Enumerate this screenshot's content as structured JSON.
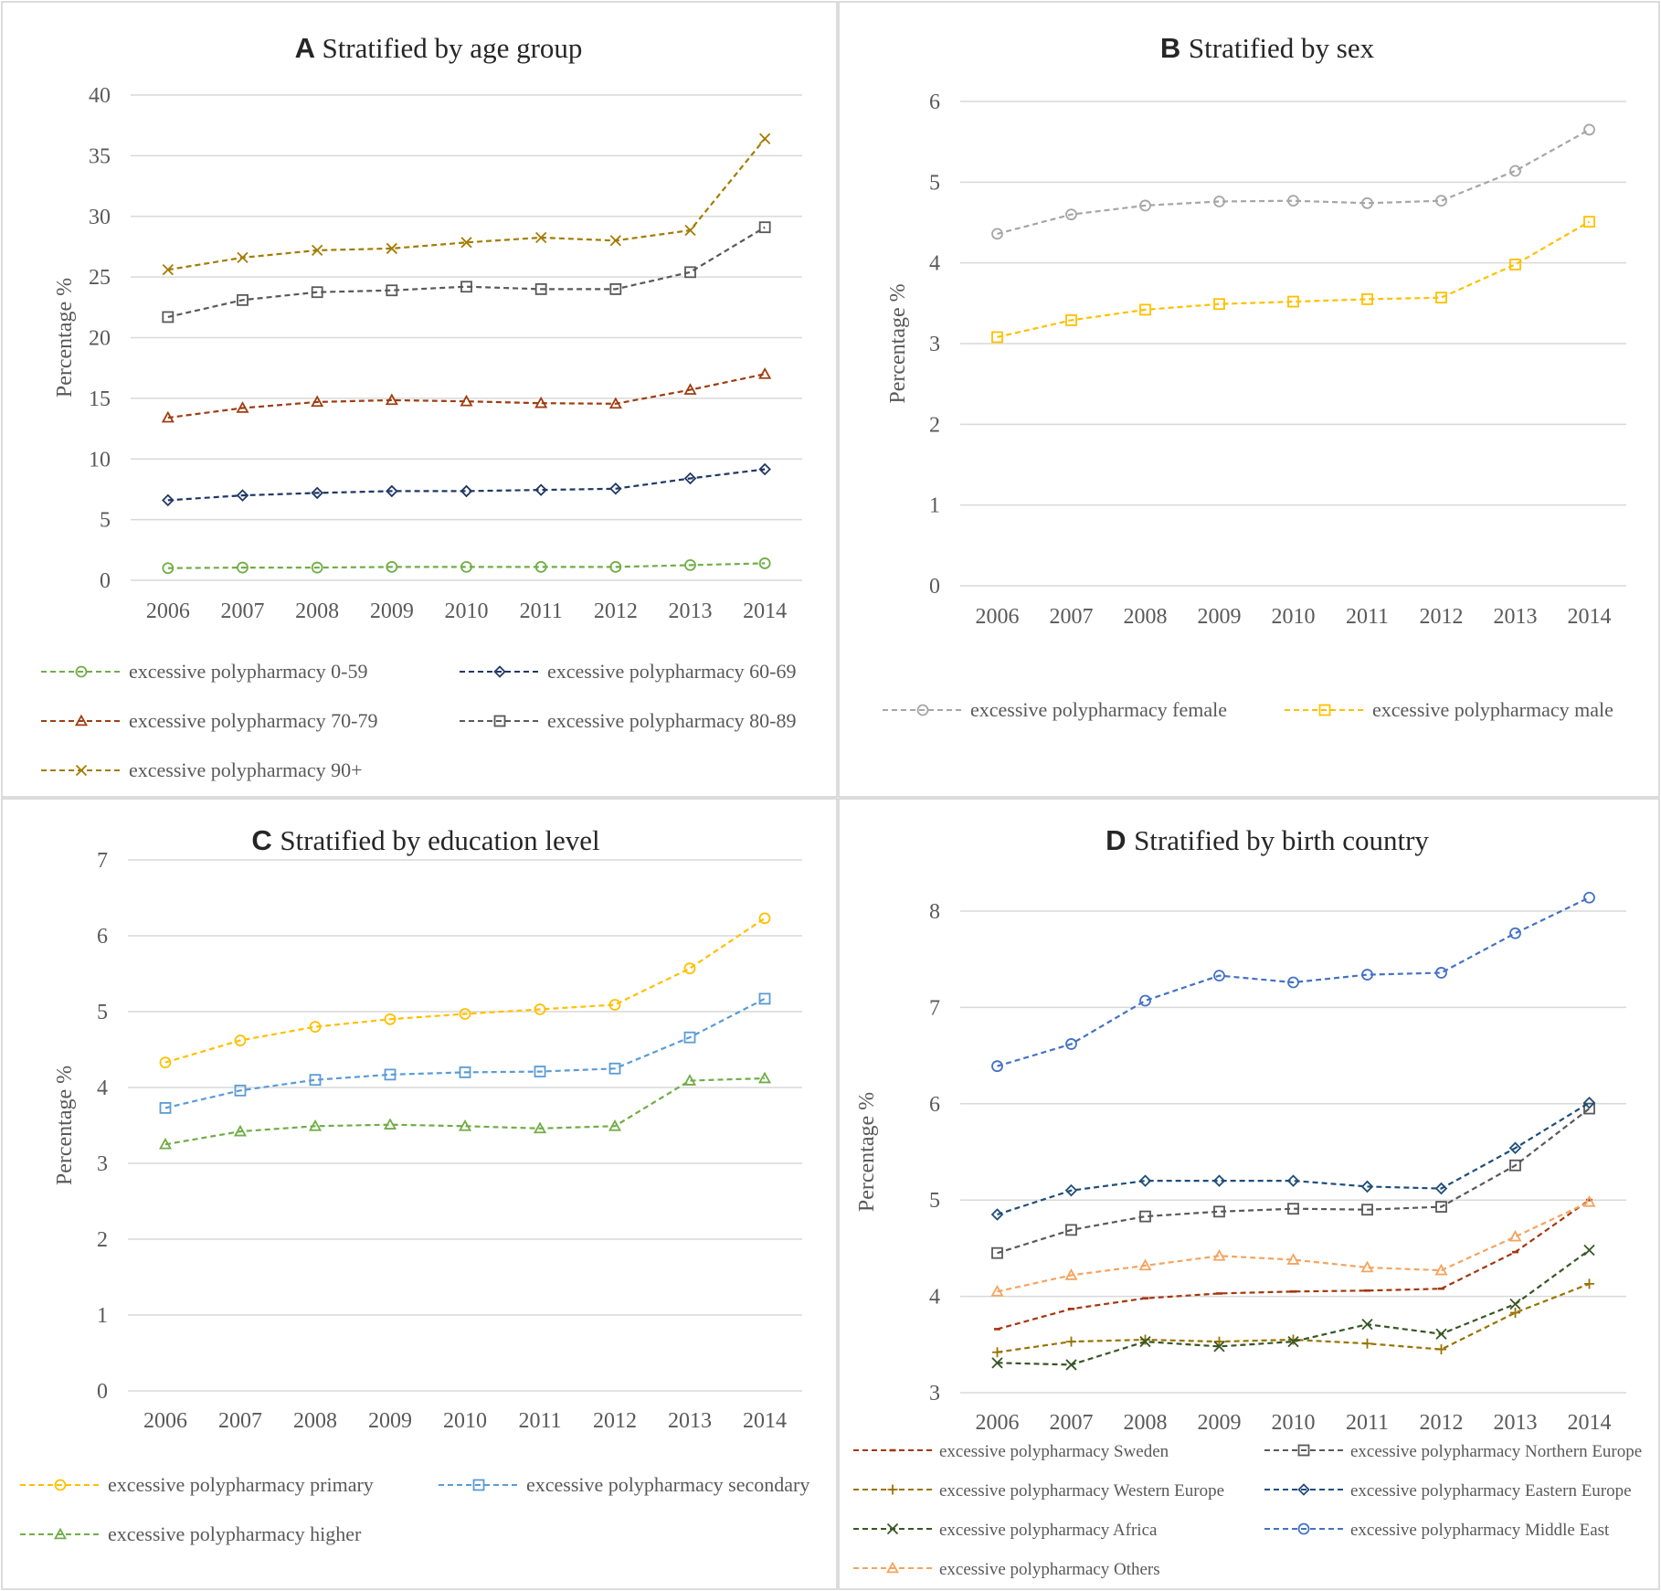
{
  "colors": {
    "grid": "#d9d9d9",
    "axis_text": "#595959",
    "border": "#d0d0d0",
    "green": "#70ad47",
    "navy": "#203864",
    "rust": "#9e3d11",
    "gray_dark": "#595959",
    "gold": "#a37c00",
    "gray_light": "#a6a6a6",
    "yellow": "#ffc000",
    "blue_light": "#5b9bd5",
    "red_brown": "#a5360f",
    "olive": "#997300",
    "navy2": "#1f4e79",
    "green_dark": "#375623",
    "blue_mid": "#4472c4",
    "salmon": "#f4a460"
  },
  "chart_data": [
    {
      "type": "line",
      "panel": "A",
      "title": "Stratified by age group",
      "ylabel": "Percentage %",
      "ylim": [
        0,
        40
      ],
      "yticks": [
        "0",
        "5",
        "10",
        "15",
        "20",
        "25",
        "30",
        "35",
        "40"
      ],
      "ytick_values": [
        0,
        5,
        10,
        15,
        20,
        25,
        30,
        35,
        40
      ],
      "categories": [
        "2006",
        "2007",
        "2008",
        "2009",
        "2010",
        "2011",
        "2012",
        "2013",
        "2014"
      ],
      "legend_columns": 2,
      "series": [
        {
          "name": "excessive polypharmacy 0-59",
          "color": "green",
          "marker": "circle",
          "values": [
            1.0,
            1.05,
            1.05,
            1.1,
            1.1,
            1.1,
            1.1,
            1.25,
            1.4
          ]
        },
        {
          "name": "excessive polypharmacy 60-69",
          "color": "navy",
          "marker": "diamond",
          "values": [
            6.6,
            7.0,
            7.2,
            7.35,
            7.35,
            7.45,
            7.55,
            8.4,
            9.15
          ]
        },
        {
          "name": "excessive polypharmacy 70-79",
          "color": "rust",
          "marker": "triangle",
          "values": [
            13.4,
            14.2,
            14.7,
            14.85,
            14.75,
            14.6,
            14.55,
            15.7,
            17.0
          ]
        },
        {
          "name": "excessive polypharmacy 80-89",
          "color": "gray_dark",
          "marker": "square",
          "values": [
            21.7,
            23.1,
            23.75,
            23.9,
            24.2,
            24.0,
            24.0,
            25.4,
            29.1
          ]
        },
        {
          "name": "excessive polypharmacy 90+",
          "color": "gold",
          "marker": "x",
          "values": [
            25.6,
            26.6,
            27.2,
            27.35,
            27.85,
            28.25,
            28.0,
            28.85,
            36.4
          ]
        }
      ]
    },
    {
      "type": "line",
      "panel": "B",
      "title": "Stratified by sex",
      "ylabel": "Percentage %",
      "ylim": [
        0,
        6
      ],
      "yticks": [
        "0",
        "1",
        "2",
        "3",
        "4",
        "5",
        "6"
      ],
      "ytick_values": [
        0,
        1,
        2,
        3,
        4,
        5,
        6
      ],
      "categories": [
        "2006",
        "2007",
        "2008",
        "2009",
        "2010",
        "2011",
        "2012",
        "2013",
        "2014"
      ],
      "legend_columns": 2,
      "series": [
        {
          "name": "excessive polypharmacy female",
          "color": "gray_light",
          "marker": "circle",
          "values": [
            4.36,
            4.6,
            4.71,
            4.76,
            4.77,
            4.74,
            4.77,
            5.14,
            5.65
          ]
        },
        {
          "name": "excessive polypharmacy male",
          "color": "yellow",
          "marker": "square",
          "values": [
            3.08,
            3.29,
            3.42,
            3.49,
            3.52,
            3.55,
            3.57,
            3.98,
            4.51
          ]
        }
      ]
    },
    {
      "type": "line",
      "panel": "C",
      "title": "Stratified by education level",
      "ylabel": "Percentage %",
      "ylim": [
        0,
        7
      ],
      "yticks": [
        "0",
        "1",
        "2",
        "3",
        "4",
        "5",
        "6",
        "7"
      ],
      "ytick_values": [
        0,
        1,
        2,
        3,
        4,
        5,
        6,
        7
      ],
      "categories": [
        "2006",
        "2007",
        "2008",
        "2009",
        "2010",
        "2011",
        "2012",
        "2013",
        "2014"
      ],
      "legend_columns": 2,
      "series": [
        {
          "name": "excessive polypharmacy  primary",
          "color": "yellow",
          "marker": "circle",
          "values": [
            4.33,
            4.62,
            4.8,
            4.9,
            4.97,
            5.03,
            5.09,
            5.57,
            6.23
          ]
        },
        {
          "name": "excessive polypharmacy secondary",
          "color": "blue_light",
          "marker": "square",
          "values": [
            3.73,
            3.96,
            4.1,
            4.17,
            4.2,
            4.21,
            4.25,
            4.66,
            5.17
          ]
        },
        {
          "name": "excessive polypharmacy higher",
          "color": "green",
          "marker": "triangle",
          "values": [
            3.25,
            3.42,
            3.49,
            3.51,
            3.49,
            3.46,
            3.49,
            4.09,
            4.12
          ]
        }
      ]
    },
    {
      "type": "line",
      "panel": "D",
      "title": "Stratified by birth country",
      "ylabel": "Percentage %",
      "ylim": [
        3,
        8
      ],
      "yticks": [
        "3",
        "4",
        "5",
        "6",
        "7",
        "8"
      ],
      "ytick_values": [
        3,
        4,
        5,
        6,
        7,
        8
      ],
      "categories": [
        "2006",
        "2007",
        "2008",
        "2009",
        "2010",
        "2011",
        "2012",
        "2013",
        "2014"
      ],
      "legend_columns": 2,
      "series": [
        {
          "name": "excessive polypharmacy Sweden",
          "color": "red_brown",
          "marker": "dash",
          "values": [
            3.66,
            3.87,
            3.98,
            4.03,
            4.05,
            4.06,
            4.08,
            4.46,
            5.0
          ]
        },
        {
          "name": "excessive polypharmacy Northern Europe",
          "color": "gray_dark",
          "marker": "square",
          "values": [
            4.45,
            4.69,
            4.83,
            4.88,
            4.91,
            4.9,
            4.93,
            5.36,
            5.95
          ]
        },
        {
          "name": "excessive polypharmacy Western Europe",
          "color": "olive",
          "marker": "plus",
          "values": [
            3.42,
            3.53,
            3.55,
            3.53,
            3.55,
            3.51,
            3.45,
            3.83,
            4.13
          ]
        },
        {
          "name": "excessive polypharmacy Eastern Europe",
          "color": "navy2",
          "marker": "diamond",
          "values": [
            4.85,
            5.1,
            5.2,
            5.2,
            5.2,
            5.14,
            5.12,
            5.54,
            6.01
          ]
        },
        {
          "name": "excessive polypharmacy Africa",
          "color": "green_dark",
          "marker": "x",
          "values": [
            3.31,
            3.29,
            3.53,
            3.48,
            3.53,
            3.71,
            3.61,
            3.92,
            4.48
          ]
        },
        {
          "name": "excessive polypharmacy Middle East",
          "color": "blue_mid",
          "marker": "circle",
          "values": [
            6.39,
            6.62,
            7.07,
            7.33,
            7.26,
            7.34,
            7.36,
            7.77,
            8.14
          ]
        },
        {
          "name": "excessive polypharmacy Others",
          "color": "salmon",
          "marker": "triangle",
          "values": [
            4.05,
            4.22,
            4.32,
            4.42,
            4.38,
            4.3,
            4.27,
            4.62,
            4.98
          ]
        }
      ]
    }
  ]
}
